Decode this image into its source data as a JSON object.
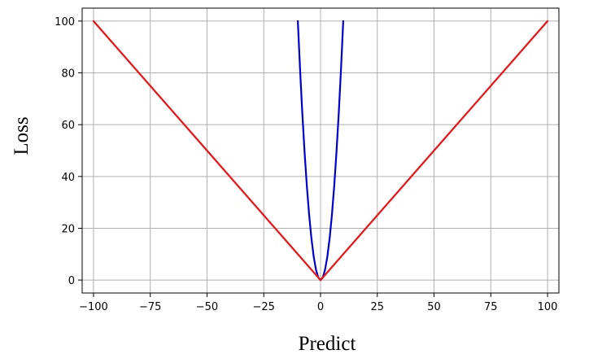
{
  "chart_data": {
    "type": "line",
    "title": "",
    "xlabel": "Predict",
    "ylabel": "Loss",
    "xlim": [
      -105,
      105
    ],
    "ylim": [
      -5,
      105
    ],
    "x_ticks": [
      -100,
      -75,
      -50,
      -25,
      0,
      25,
      50,
      75,
      100
    ],
    "x_tick_labels": [
      "−100",
      "−75",
      "−50",
      "−25",
      "0",
      "25",
      "50",
      "75",
      "100"
    ],
    "y_ticks": [
      0,
      20,
      40,
      60,
      80,
      100
    ],
    "y_tick_labels": [
      "0",
      "20",
      "40",
      "60",
      "80",
      "100"
    ],
    "grid": true,
    "legend": "none",
    "series": [
      {
        "color": "#0000cc",
        "x": [
          -10,
          -9,
          -8,
          -7,
          -6,
          -5,
          -4,
          -3,
          -2,
          -1,
          0,
          1,
          2,
          3,
          4,
          5,
          6,
          7,
          8,
          9,
          10
        ],
        "y": [
          100,
          81,
          64,
          49,
          36,
          25,
          16,
          9,
          4,
          1,
          0,
          1,
          4,
          9,
          16,
          25,
          36,
          49,
          64,
          81,
          100
        ]
      },
      {
        "color": "#ee1111",
        "x": [
          -100,
          0,
          100
        ],
        "y": [
          100,
          0,
          100
        ]
      }
    ]
  }
}
